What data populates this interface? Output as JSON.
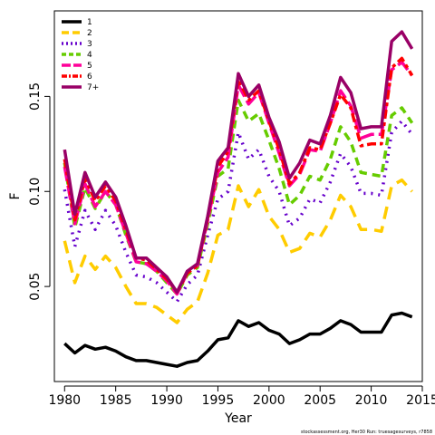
{
  "chart_data": {
    "type": "line",
    "xlabel": "Year",
    "ylabel": "F",
    "xlim": [
      1979,
      2015
    ],
    "ylim": [
      0.0,
      0.195
    ],
    "x_ticks": [
      1980,
      1985,
      1990,
      1995,
      2000,
      2005,
      2010,
      2015
    ],
    "y_ticks": [
      0.05,
      0.1,
      0.15
    ],
    "y_tick_labels": [
      "0.05",
      "0.10",
      "0.15"
    ],
    "x": [
      1980,
      1981,
      1982,
      1983,
      1984,
      1985,
      1986,
      1987,
      1988,
      1989,
      1990,
      1991,
      1992,
      1993,
      1994,
      1995,
      1996,
      1997,
      1998,
      1999,
      2000,
      2001,
      2002,
      2003,
      2004,
      2005,
      2006,
      2007,
      2008,
      2009,
      2010,
      2011,
      2012,
      2013,
      2014
    ],
    "legend_position": "top-left",
    "series": [
      {
        "name": "1",
        "color": "#000000",
        "dash": "solid",
        "values": [
          0.02,
          0.015,
          0.019,
          0.017,
          0.018,
          0.016,
          0.013,
          0.011,
          0.011,
          0.01,
          0.009,
          0.008,
          0.01,
          0.011,
          0.016,
          0.022,
          0.023,
          0.032,
          0.029,
          0.031,
          0.027,
          0.025,
          0.02,
          0.022,
          0.025,
          0.025,
          0.028,
          0.032,
          0.03,
          0.026,
          0.026,
          0.026,
          0.035,
          0.036,
          0.034
        ]
      },
      {
        "name": "2",
        "color": "#FFCC00",
        "dash": "long",
        "values": [
          0.074,
          0.052,
          0.066,
          0.059,
          0.066,
          0.06,
          0.05,
          0.041,
          0.041,
          0.039,
          0.035,
          0.031,
          0.038,
          0.042,
          0.057,
          0.077,
          0.08,
          0.103,
          0.092,
          0.101,
          0.087,
          0.08,
          0.068,
          0.07,
          0.078,
          0.076,
          0.085,
          0.098,
          0.092,
          0.08,
          0.08,
          0.079,
          0.103,
          0.106,
          0.1
        ]
      },
      {
        "name": "3",
        "color": "#6600CC",
        "dash": "dot",
        "values": [
          0.101,
          0.071,
          0.09,
          0.08,
          0.09,
          0.082,
          0.068,
          0.056,
          0.055,
          0.052,
          0.047,
          0.042,
          0.051,
          0.056,
          0.077,
          0.096,
          0.1,
          0.131,
          0.117,
          0.122,
          0.108,
          0.1,
          0.082,
          0.086,
          0.096,
          0.094,
          0.105,
          0.12,
          0.113,
          0.099,
          0.099,
          0.098,
          0.131,
          0.137,
          0.13
        ]
      },
      {
        "name": "4",
        "color": "#66CC00",
        "dash": "dash",
        "values": [
          0.115,
          0.081,
          0.102,
          0.091,
          0.1,
          0.093,
          0.077,
          0.063,
          0.062,
          0.058,
          0.052,
          0.046,
          0.056,
          0.06,
          0.083,
          0.108,
          0.112,
          0.148,
          0.137,
          0.141,
          0.127,
          0.112,
          0.093,
          0.098,
          0.108,
          0.106,
          0.117,
          0.134,
          0.126,
          0.11,
          0.109,
          0.108,
          0.14,
          0.144,
          0.136
        ]
      },
      {
        "name": "5",
        "color": "#FF0099",
        "dash": "longdash",
        "values": [
          0.113,
          0.083,
          0.104,
          0.092,
          0.1,
          0.093,
          0.078,
          0.063,
          0.062,
          0.058,
          0.053,
          0.046,
          0.057,
          0.061,
          0.085,
          0.11,
          0.118,
          0.156,
          0.146,
          0.152,
          0.136,
          0.12,
          0.103,
          0.109,
          0.122,
          0.121,
          0.136,
          0.153,
          0.145,
          0.128,
          0.13,
          0.13,
          0.164,
          0.168,
          0.161
        ]
      },
      {
        "name": "6",
        "color": "#FF0000",
        "dash": "twodash",
        "values": [
          0.117,
          0.085,
          0.107,
          0.095,
          0.103,
          0.095,
          0.08,
          0.065,
          0.064,
          0.059,
          0.054,
          0.047,
          0.057,
          0.061,
          0.086,
          0.113,
          0.121,
          0.159,
          0.148,
          0.153,
          0.137,
          0.122,
          0.104,
          0.11,
          0.123,
          0.122,
          0.136,
          0.151,
          0.144,
          0.124,
          0.125,
          0.125,
          0.165,
          0.17,
          0.161
        ]
      },
      {
        "name": "7+",
        "color": "#990066",
        "dash": "solid",
        "values": [
          0.122,
          0.088,
          0.11,
          0.097,
          0.105,
          0.097,
          0.082,
          0.065,
          0.065,
          0.06,
          0.055,
          0.047,
          0.058,
          0.062,
          0.087,
          0.116,
          0.123,
          0.162,
          0.15,
          0.156,
          0.139,
          0.126,
          0.107,
          0.115,
          0.127,
          0.125,
          0.14,
          0.16,
          0.152,
          0.133,
          0.134,
          0.134,
          0.179,
          0.184,
          0.175
        ]
      }
    ]
  },
  "footer": "stockassessment.org, Her30 Run: truesagesurveys, r7858"
}
